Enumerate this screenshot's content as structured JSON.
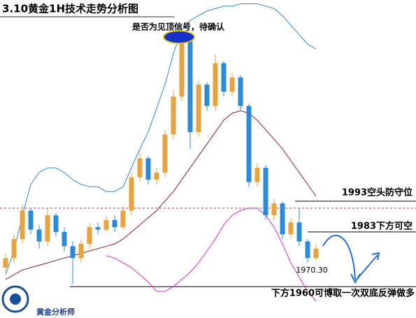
{
  "chart_data": {
    "type": "candlestick",
    "title": "3.10黄金1H技术走势分析图",
    "annotation": "是否为见顶信号，待确认",
    "brand": "黄金分析师",
    "ylim": [
      1946.8,
      2080.6
    ],
    "up_color": "#e8a33c",
    "down_color": "#2a8ad8",
    "open": [
      1968,
      1972,
      1980,
      1992,
      1984,
      1979,
      1990,
      1983,
      1977,
      1972,
      1978,
      1985,
      1984,
      1988,
      1985,
      1992,
      2006,
      2014,
      2005,
      2008,
      2024,
      2040,
      2066,
      2025,
      2045,
      2036,
      2054,
      2042,
      2048,
      2036,
      2004,
      2010,
      1990,
      1995,
      1982,
      1987,
      1979,
      1972
    ],
    "close": [
      1972,
      1980,
      1992,
      1984,
      1979,
      1990,
      1983,
      1977,
      1972,
      1978,
      1985,
      1984,
      1988,
      1985,
      1992,
      2006,
      2014,
      2005,
      2008,
      2024,
      2040,
      2066,
      2025,
      2045,
      2036,
      2054,
      2042,
      2048,
      2036,
      2004,
      2010,
      1990,
      1995,
      1982,
      1987,
      1979,
      1972,
      1976
    ],
    "high": [
      1974,
      1982,
      1995,
      1993,
      1986,
      1993,
      1991,
      1985,
      1979,
      1980,
      1987,
      1987,
      1990,
      1990,
      1994,
      2008,
      2018,
      2015,
      2010,
      2026,
      2043,
      2069,
      2067,
      2047,
      2046,
      2058,
      2055,
      2050,
      2049,
      2037,
      2012,
      2011,
      1997,
      1996,
      1989,
      1993,
      1980,
      1978
    ],
    "low": [
      1966,
      1970,
      1978,
      1982,
      1976,
      1977,
      1981,
      1975,
      1961,
      1970,
      1976,
      1982,
      1983,
      1983,
      1984,
      1990,
      2004,
      2003,
      2003,
      2006,
      2022,
      2038,
      2018,
      2023,
      2034,
      2034,
      2040,
      2040,
      2034,
      2002,
      2002,
      1988,
      1988,
      1980,
      1980,
      1977,
      1970.3,
      1971
    ],
    "low_label": {
      "value": 1970.3,
      "label": "1970.30"
    },
    "series": [
      {
        "name": "upper",
        "color": "#2a8ad8",
        "values": [
          1965,
          1975,
          1990,
          2003,
          2008,
          2010,
          2010,
          2008,
          2005,
          2003,
          2002,
          2002,
          2000,
          2000,
          2002,
          2010,
          2018,
          2025,
          2035,
          2045,
          2058,
          2068,
          2072,
          2074,
          2076,
          2077,
          2078,
          2078,
          2079,
          2079,
          2079,
          2078,
          2077,
          2074,
          2070,
          2066,
          2062,
          2060
        ]
      },
      {
        "name": "middle",
        "color": "#8b1a2a",
        "values": [
          1963,
          1965,
          1967,
          1968,
          1969,
          1970,
          1971,
          1972,
          1973,
          1974,
          1975,
          1976,
          1977,
          1978,
          1980,
          1983,
          1986,
          1989,
          1992,
          1996,
          2000,
          2005,
          2010,
          2015,
          2020,
          2025,
          2030,
          2033,
          2034,
          2033,
          2030,
          2026,
          2022,
          2018,
          2013,
          2008,
          2003,
          1998
        ]
      },
      {
        "name": "lower",
        "color": "#d12ad1",
        "values": [
          null,
          null,
          null,
          null,
          null,
          null,
          null,
          null,
          null,
          null,
          null,
          null,
          1973,
          1972,
          1970,
          1968,
          1965,
          1962,
          1958,
          1958,
          1960,
          1963,
          1966,
          1970,
          1975,
          1980,
          1986,
          1990,
          1992,
          1993,
          1993,
          1990,
          1985,
          1978,
          1970,
          1964,
          1958,
          1954
        ]
      }
    ],
    "levels": [
      {
        "value": 1993,
        "label": "1993空头防守位"
      },
      {
        "value": 1983,
        "label": "1983下方可空"
      },
      {
        "value": 1960,
        "label": "下方1960可博取一次双底反弹做多"
      }
    ]
  }
}
